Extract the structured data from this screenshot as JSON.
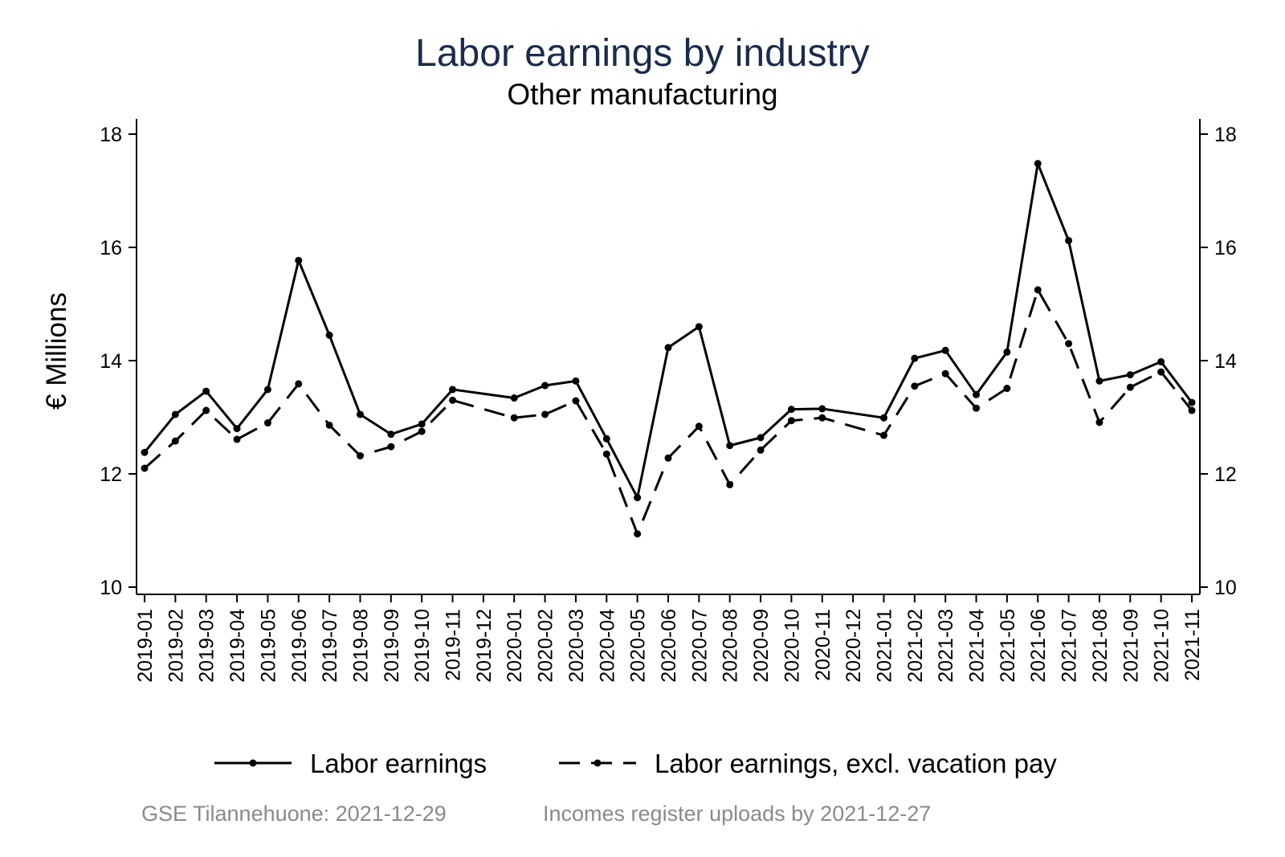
{
  "chart_data": {
    "type": "line",
    "title": "Labor earnings by industry",
    "subtitle": "Other manufacturing",
    "ylabel": "€ Millions",
    "xlabel": "",
    "ylim": [
      10,
      18
    ],
    "yticks": [
      10,
      12,
      14,
      16,
      18
    ],
    "right_axis": true,
    "grid": false,
    "legend_position": "bottom",
    "title_color": "#1a2b4c",
    "categories": [
      "2019-01",
      "2019-02",
      "2019-03",
      "2019-04",
      "2019-05",
      "2019-06",
      "2019-07",
      "2019-08",
      "2019-09",
      "2019-10",
      "2019-11",
      "2019-12",
      "2020-01",
      "2020-02",
      "2020-03",
      "2020-04",
      "2020-05",
      "2020-06",
      "2020-07",
      "2020-08",
      "2020-09",
      "2020-10",
      "2020-11",
      "2020-12",
      "2021-01",
      "2021-02",
      "2021-03",
      "2021-04",
      "2021-05",
      "2021-06",
      "2021-07",
      "2021-08",
      "2021-09",
      "2021-10",
      "2021-11"
    ],
    "series": [
      {
        "name": "Labor earnings",
        "style": "solid",
        "values": [
          12.38,
          13.05,
          13.46,
          12.8,
          13.49,
          15.77,
          14.45,
          13.05,
          12.7,
          12.88,
          13.49,
          null,
          13.34,
          13.56,
          13.64,
          12.62,
          11.58,
          14.23,
          14.6,
          12.5,
          12.64,
          13.14,
          13.15,
          null,
          12.99,
          14.04,
          14.18,
          13.4,
          14.15,
          17.48,
          16.12,
          13.64,
          13.75,
          13.98,
          13.26
        ]
      },
      {
        "name": "Labor earnings, excl. vacation pay",
        "style": "dashed",
        "values": [
          12.1,
          12.58,
          13.12,
          12.61,
          12.9,
          13.59,
          12.86,
          12.32,
          12.48,
          12.75,
          13.3,
          null,
          12.99,
          13.05,
          13.29,
          12.35,
          10.94,
          12.28,
          12.84,
          11.81,
          12.42,
          12.94,
          12.99,
          null,
          12.68,
          13.55,
          13.77,
          13.16,
          13.51,
          15.25,
          14.3,
          12.91,
          13.53,
          13.8,
          13.12
        ]
      }
    ]
  },
  "footer": {
    "source": "GSE Tilannehuone: 2021-12-29",
    "uploads": "Incomes register uploads by 2021-12-27"
  }
}
